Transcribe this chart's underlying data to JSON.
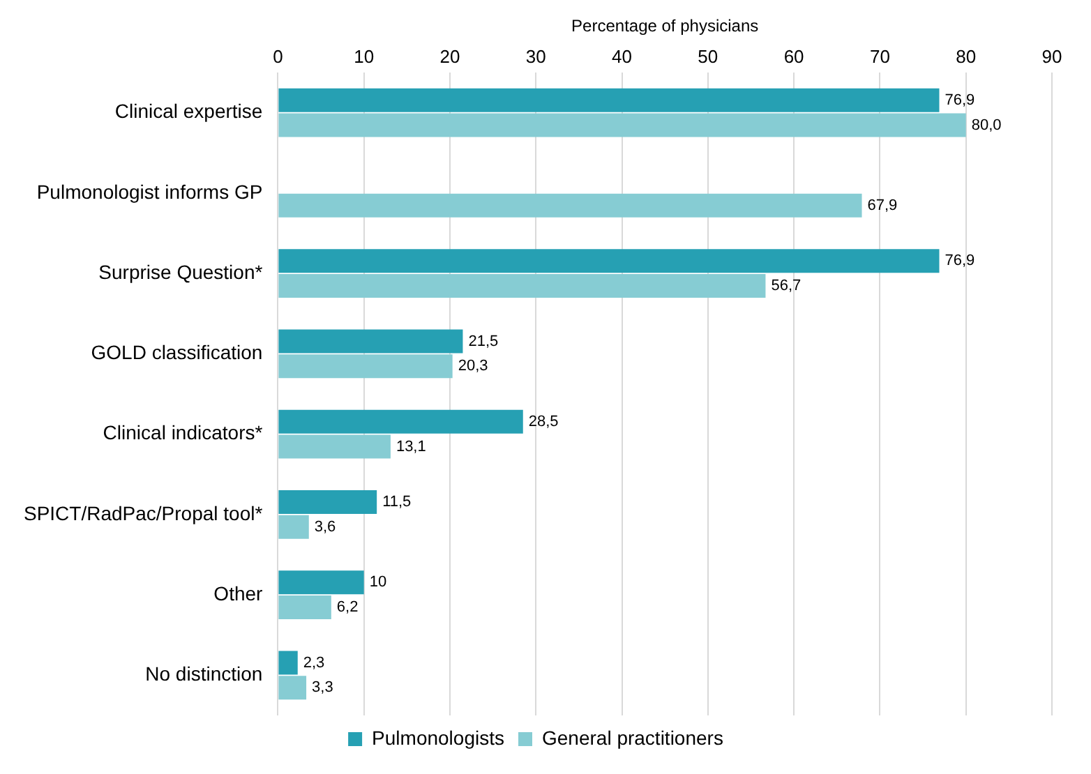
{
  "chart_data": {
    "type": "bar",
    "orientation": "horizontal",
    "xlabel": "Percentage of physicians",
    "categories": [
      "Clinical expertise",
      "Pulmonologist informs GP",
      "Surprise Question*",
      "GOLD classification",
      "Clinical indicators*",
      "SPICT/RadPac/Propal tool*",
      "Other",
      "No distinction"
    ],
    "series": [
      {
        "name": "Pulmonologists",
        "color": "#26a0b3",
        "values": [
          76.9,
          null,
          76.9,
          21.5,
          28.5,
          11.5,
          10,
          2.3
        ],
        "value_labels": [
          "76,9",
          null,
          "76,9",
          "21,5",
          "28,5",
          "11,5",
          "10",
          "2,3"
        ]
      },
      {
        "name": "General practitioners",
        "color": "#86ccd3",
        "values": [
          80.0,
          67.9,
          56.7,
          20.3,
          13.1,
          3.6,
          6.2,
          3.3
        ],
        "value_labels": [
          "80,0",
          "67,9",
          "56,7",
          "20,3",
          "13,1",
          "3,6",
          "6,2",
          "3,3"
        ]
      }
    ],
    "xlim": [
      0,
      90
    ],
    "xticks": [
      0,
      10,
      20,
      30,
      40,
      50,
      60,
      70,
      80,
      90
    ],
    "grid": "x",
    "legend": "bottom"
  }
}
